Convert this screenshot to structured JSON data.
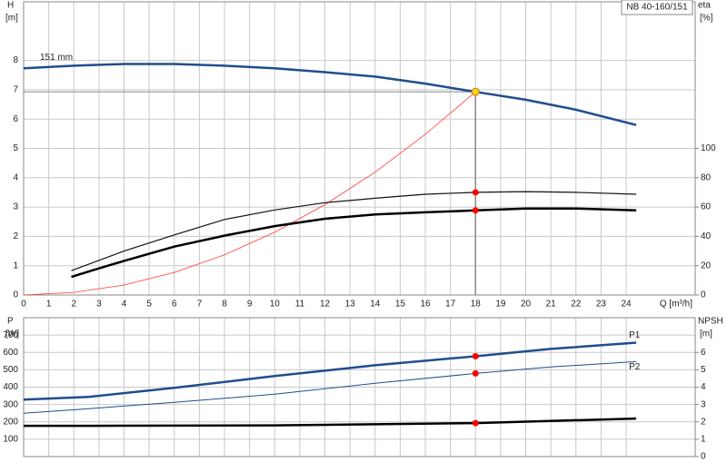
{
  "chart_data": [
    {
      "type": "line",
      "title": "NB 40-160/151",
      "ylabel": "H",
      "yunit": "[m]",
      "y2label": "eta",
      "y2unit": "[%]",
      "xlabel": "Q [m³/h]",
      "xlim": [
        0,
        26.75
      ],
      "xticks": [
        0,
        1,
        2,
        3,
        4,
        5,
        6,
        7,
        8,
        9,
        10,
        11,
        12,
        13,
        14,
        15,
        16,
        17,
        18,
        19,
        20,
        21,
        22,
        23,
        24
      ],
      "ylim": [
        0,
        10
      ],
      "yticks": [
        0,
        1,
        2,
        3,
        4,
        5,
        6,
        7,
        8
      ],
      "y2lim": [
        0,
        200
      ],
      "y2ticks": [
        0,
        20,
        40,
        60,
        80,
        100
      ],
      "grid": true,
      "series": [
        {
          "name": "151 mm",
          "color": "#1f4e8c",
          "width": 2.5,
          "axis": "y",
          "x": [
            0,
            2,
            4,
            6,
            8,
            10,
            12,
            14,
            16,
            18,
            20,
            22,
            24.4
          ],
          "values": [
            7.73,
            7.82,
            7.88,
            7.88,
            7.82,
            7.73,
            7.6,
            7.45,
            7.21,
            6.93,
            6.66,
            6.32,
            5.8
          ]
        },
        {
          "color": "#ff3b30",
          "width": 0.8,
          "axis": "y",
          "x": [
            0,
            2,
            4,
            6,
            8,
            10,
            12,
            14,
            16,
            18
          ],
          "values": [
            0,
            0.09,
            0.34,
            0.77,
            1.37,
            2.14,
            3.08,
            4.19,
            5.48,
            6.93
          ]
        },
        {
          "color": "#111111",
          "width": 1.2,
          "axis": "y2",
          "x": [
            1.9,
            4,
            6,
            8,
            10,
            12,
            14,
            16,
            18,
            20,
            22,
            24.4
          ],
          "values": [
            16.6,
            30,
            41,
            51.5,
            58,
            63,
            66,
            68.7,
            70,
            70.5,
            70,
            68.7
          ]
        },
        {
          "color": "#000000",
          "width": 2.5,
          "axis": "y2",
          "x": [
            1.9,
            2.7,
            4,
            6,
            8,
            10,
            12,
            14,
            16,
            18,
            20,
            22,
            24.4
          ],
          "values": [
            12.3,
            16.6,
            23.3,
            33,
            40.5,
            47,
            52,
            55,
            56.4,
            57.7,
            59,
            59,
            57.7
          ]
        }
      ],
      "markers": [
        {
          "x": 18,
          "y": 6.93,
          "axis": "y",
          "color": "#ffd21f"
        },
        {
          "x": 18,
          "y": 70,
          "axis": "y2",
          "color": "#ff0000"
        },
        {
          "x": 18,
          "y": 57.7,
          "axis": "y2",
          "color": "#ff0000"
        }
      ]
    },
    {
      "type": "line",
      "ylabel": "P",
      "yunit": "[W]",
      "y2label": "NPSH",
      "y2unit": "[m]",
      "xlim": [
        0,
        26.75
      ],
      "xticks": [
        0,
        1,
        2,
        3,
        4,
        5,
        6,
        7,
        8,
        9,
        10,
        11,
        12,
        13,
        14,
        15,
        16,
        17,
        18,
        19,
        20,
        21,
        22,
        23,
        24
      ],
      "ylim": [
        0,
        800
      ],
      "yticks": [
        100,
        200,
        300,
        400,
        500,
        600,
        700
      ],
      "y2lim": [
        0,
        8
      ],
      "y2ticks": [
        0,
        1,
        2,
        3,
        4,
        5,
        6
      ],
      "grid": true,
      "series": [
        {
          "name": "P1",
          "color": "#1f4e8c",
          "width": 2.5,
          "axis": "y",
          "x": [
            0,
            2.6,
            6,
            10,
            14,
            18,
            21,
            24.4
          ],
          "values": [
            328,
            344,
            396,
            464,
            526,
            578,
            620,
            656
          ]
        },
        {
          "name": "P2",
          "color": "#1f4e8c",
          "width": 1,
          "axis": "y",
          "x": [
            0,
            2.6,
            6,
            10,
            14,
            18,
            21,
            24.4
          ],
          "values": [
            250,
            276,
            312,
            359,
            422,
            479,
            516,
            547
          ]
        },
        {
          "color": "#000000",
          "width": 2.5,
          "axis": "y2",
          "x": [
            0,
            2.6,
            10,
            18,
            24.4
          ],
          "values": [
            1.77,
            1.77,
            1.8,
            1.93,
            2.19
          ]
        }
      ],
      "markers": [
        {
          "x": 18,
          "y": 578,
          "axis": "y",
          "color": "#ff0000"
        },
        {
          "x": 18,
          "y": 479,
          "axis": "y",
          "color": "#ff0000"
        },
        {
          "x": 18,
          "y": 1.93,
          "axis": "y2",
          "color": "#ff0000"
        }
      ]
    }
  ]
}
